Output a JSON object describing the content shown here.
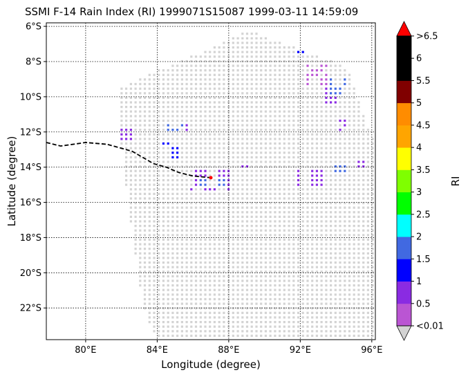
{
  "title": "SSMI F-14 Rain Index (RI) 1999071S15087 1999-03-11 14:59:09",
  "xlabel": "Longitude (degree)",
  "ylabel": "Latitude (degree)",
  "colorbar_label": "RI",
  "chart_data": {
    "type": "scatter",
    "title": "SSMI F-14 Rain Index (RI) 1999071S15087 1999-03-11 14:59:09",
    "xlabel": "Longitude (degree)",
    "ylabel": "Latitude (degree)",
    "xlim": [
      77.8,
      96.2
    ],
    "ylim": [
      -23.8,
      -5.8
    ],
    "x_ticks": [
      {
        "value": 80,
        "label": "80°E"
      },
      {
        "value": 84,
        "label": "84°E"
      },
      {
        "value": 88,
        "label": "88°E"
      },
      {
        "value": 92,
        "label": "92°E"
      },
      {
        "value": 96,
        "label": "96°E"
      }
    ],
    "y_ticks": [
      {
        "value": -6,
        "label": "6°S"
      },
      {
        "value": -8,
        "label": "8°S"
      },
      {
        "value": -10,
        "label": "10°S"
      },
      {
        "value": -12,
        "label": "12°S"
      },
      {
        "value": -14,
        "label": "14°S"
      },
      {
        "value": -16,
        "label": "16°S"
      },
      {
        "value": -18,
        "label": "18°S"
      },
      {
        "value": -20,
        "label": "20°S"
      },
      {
        "value": -22,
        "label": "22°S"
      }
    ],
    "grid": true,
    "swath_polygon": [
      [
        82.0,
        -9.4
      ],
      [
        87.5,
        -7.0
      ],
      [
        89.0,
        -6.2
      ],
      [
        94.6,
        -8.3
      ],
      [
        96.2,
        -12.8
      ],
      [
        96.2,
        -23.8
      ],
      [
        84.0,
        -23.8
      ],
      [
        83.2,
        -22.0
      ],
      [
        82.5,
        -17.0
      ],
      [
        81.8,
        -11.5
      ]
    ],
    "colorbar": {
      "label": "RI",
      "bounds": [
        0.01,
        0.5,
        1,
        1.5,
        2,
        2.5,
        3,
        3.5,
        4,
        4.5,
        5,
        5.5,
        6,
        6.5
      ],
      "tick_labels": [
        "<0.01",
        "0.5",
        "1",
        "1.5",
        "2",
        "2.5",
        "3",
        "3.5",
        "4",
        "4.5",
        "5",
        "5.5",
        "6",
        ">6.5"
      ],
      "colors": [
        "#ba55d3",
        "#8a2be2",
        "#0000ff",
        "#4169e1",
        "#00ffff",
        "#00ff00",
        "#7fff00",
        "#ffff00",
        "#ffa500",
        "#ff8c00",
        "#800000",
        "#000000",
        "#000000"
      ],
      "under_color": "#d3d3d3",
      "over_color": "#ff0000",
      "no_rain_color": "#d3d3d3"
    },
    "storm_track": {
      "style": "dashed",
      "color": "#000000",
      "points": [
        [
          77.8,
          -12.6
        ],
        [
          78.6,
          -12.8
        ],
        [
          80.0,
          -12.6
        ],
        [
          81.2,
          -12.7
        ],
        [
          82.6,
          -13.1
        ],
        [
          83.8,
          -13.8
        ],
        [
          84.5,
          -14.0
        ],
        [
          85.2,
          -14.3
        ],
        [
          86.0,
          -14.5
        ],
        [
          87.0,
          -14.6
        ]
      ]
    },
    "current_position": {
      "lon": 87.0,
      "lat": -14.6,
      "color": "#ff0000"
    },
    "rain_cells": [
      {
        "lon_min": 84.4,
        "lon_max": 85.9,
        "lat_min": -12.0,
        "lat_max": -11.5,
        "ri": 0.5
      },
      {
        "lon_min": 84.6,
        "lon_max": 85.4,
        "lat_min": -12.0,
        "lat_max": -11.6,
        "ri": 1.5
      },
      {
        "lon_min": 84.2,
        "lon_max": 85.3,
        "lat_min": -13.5,
        "lat_max": -12.6,
        "ri": 1.2
      },
      {
        "lon_min": 82.0,
        "lon_max": 82.6,
        "lat_min": -12.6,
        "lat_max": -11.8,
        "ri": 0.5
      },
      {
        "lon_min": 85.8,
        "lon_max": 88.2,
        "lat_min": -15.4,
        "lat_max": -14.2,
        "ri": 0.8
      },
      {
        "lon_min": 86.2,
        "lon_max": 87.8,
        "lat_min": -15.2,
        "lat_max": -14.6,
        "ri": 1.8
      },
      {
        "lon_min": 88.4,
        "lon_max": 89.2,
        "lat_min": -14.2,
        "lat_max": -13.9,
        "ri": 0.5
      },
      {
        "lon_min": 91.8,
        "lon_max": 93.8,
        "lat_min": -15.0,
        "lat_max": -14.2,
        "ri": 0.6
      },
      {
        "lon_min": 93.6,
        "lon_max": 95.2,
        "lat_min": -14.3,
        "lat_max": -13.7,
        "ri": 1.6
      },
      {
        "lon_min": 95.0,
        "lon_max": 95.6,
        "lat_min": -14.0,
        "lat_max": -13.5,
        "ri": 0.6
      },
      {
        "lon_min": 93.5,
        "lon_max": 94.5,
        "lat_min": -10.0,
        "lat_max": -8.8,
        "ri": 1.5
      },
      {
        "lon_min": 93.1,
        "lon_max": 94.1,
        "lat_min": -10.4,
        "lat_max": -9.4,
        "ri": 0.8
      },
      {
        "lon_min": 92.3,
        "lon_max": 93.6,
        "lat_min": -9.4,
        "lat_max": -8.0,
        "ri": 0.4
      },
      {
        "lon_min": 91.8,
        "lon_max": 92.4,
        "lat_min": -7.6,
        "lat_max": -7.2,
        "ri": 1.2
      },
      {
        "lon_min": 94.1,
        "lon_max": 94.6,
        "lat_min": -12.0,
        "lat_max": -11.2,
        "ri": 0.5
      }
    ]
  }
}
